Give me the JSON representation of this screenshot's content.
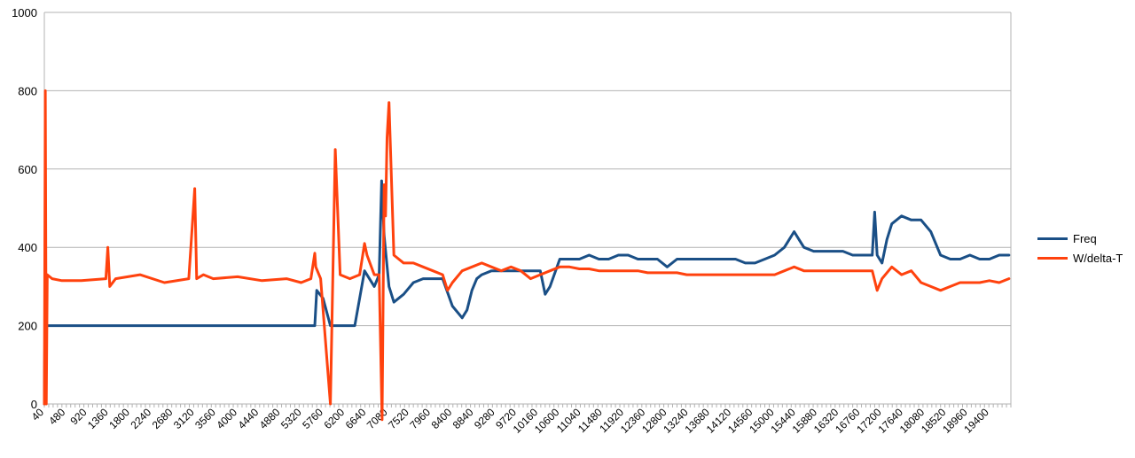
{
  "chart_data": {
    "type": "line",
    "title": "",
    "xlabel": "",
    "ylabel": "",
    "ylim": [
      0,
      1000
    ],
    "y_ticks": [
      0,
      200,
      400,
      600,
      800,
      1000
    ],
    "xlim": [
      40,
      19840
    ],
    "x_tick_labels": [
      "40",
      "480",
      "920",
      "1360",
      "1800",
      "2240",
      "2680",
      "3120",
      "3560",
      "4000",
      "4440",
      "4880",
      "5320",
      "5760",
      "6200",
      "6640",
      "7080",
      "7520",
      "7960",
      "8400",
      "8840",
      "9280",
      "9720",
      "10160",
      "10600",
      "11040",
      "11480",
      "11920",
      "12360",
      "12800",
      "13240",
      "13680",
      "14120",
      "14560",
      "15000",
      "15440",
      "15880",
      "16320",
      "16760",
      "17200",
      "17640",
      "18080",
      "18520",
      "18960",
      "19400"
    ],
    "grid": "horizontal",
    "legend_position": "right",
    "series": [
      {
        "name": "Freq",
        "color": "#1a4f86",
        "x": [
          40,
          60,
          80,
          500,
          1500,
          2500,
          3500,
          4500,
          5300,
          5580,
          5620,
          5750,
          5900,
          6000,
          6200,
          6400,
          6600,
          6800,
          6900,
          6950,
          7000,
          7100,
          7200,
          7400,
          7600,
          7800,
          8000,
          8200,
          8400,
          8600,
          8700,
          8800,
          8900,
          9000,
          9200,
          9400,
          9600,
          9800,
          10000,
          10200,
          10300,
          10400,
          10600,
          10800,
          11000,
          11200,
          11400,
          11600,
          11800,
          12000,
          12200,
          12400,
          12600,
          12800,
          13000,
          13200,
          13400,
          13600,
          13800,
          14000,
          14200,
          14400,
          14600,
          14800,
          15000,
          15200,
          15400,
          15500,
          15600,
          15800,
          16000,
          16200,
          16400,
          16600,
          16800,
          17000,
          17050,
          17100,
          17200,
          17300,
          17400,
          17600,
          17800,
          18000,
          18200,
          18400,
          18600,
          18800,
          19000,
          19200,
          19400,
          19600,
          19800
        ],
        "values": [
          0,
          320,
          200,
          200,
          200,
          200,
          200,
          200,
          200,
          200,
          290,
          270,
          200,
          200,
          200,
          200,
          340,
          300,
          330,
          570,
          430,
          300,
          260,
          280,
          310,
          320,
          320,
          320,
          250,
          220,
          240,
          290,
          320,
          330,
          340,
          340,
          340,
          340,
          340,
          340,
          280,
          300,
          370,
          370,
          370,
          380,
          370,
          370,
          380,
          380,
          370,
          370,
          370,
          350,
          370,
          370,
          370,
          370,
          370,
          370,
          370,
          360,
          360,
          370,
          380,
          400,
          440,
          420,
          400,
          390,
          390,
          390,
          390,
          380,
          380,
          380,
          490,
          380,
          360,
          420,
          460,
          480,
          470,
          470,
          440,
          380,
          370,
          370,
          380,
          370,
          370,
          380,
          380
        ]
      },
      {
        "name": "W/delta-T",
        "color": "#ff420e",
        "x": [
          40,
          60,
          80,
          100,
          200,
          400,
          800,
          1300,
          1340,
          1380,
          1500,
          2000,
          2500,
          3000,
          3120,
          3160,
          3300,
          3500,
          4000,
          4500,
          5000,
          5300,
          5500,
          5580,
          5600,
          5700,
          5900,
          6000,
          6100,
          6300,
          6500,
          6600,
          6650,
          6800,
          6900,
          6960,
          7000,
          7030,
          7060,
          7100,
          7200,
          7400,
          7600,
          7800,
          8000,
          8200,
          8300,
          8400,
          8600,
          8800,
          9000,
          9200,
          9400,
          9600,
          9800,
          10000,
          10200,
          10400,
          10600,
          10800,
          11000,
          11200,
          11400,
          11600,
          11800,
          12000,
          12200,
          12400,
          12600,
          12800,
          13000,
          13200,
          13400,
          13600,
          13800,
          14000,
          14200,
          14400,
          14600,
          14800,
          15000,
          15200,
          15400,
          15600,
          15800,
          16000,
          16200,
          16400,
          16600,
          16800,
          17000,
          17100,
          17200,
          17400,
          17600,
          17800,
          18000,
          18200,
          18400,
          18600,
          18800,
          19000,
          19200,
          19400,
          19600,
          19800
        ],
        "values": [
          0,
          800,
          0,
          330,
          320,
          315,
          315,
          320,
          400,
          300,
          320,
          330,
          310,
          320,
          550,
          320,
          330,
          320,
          325,
          315,
          320,
          310,
          320,
          385,
          350,
          320,
          0,
          650,
          330,
          320,
          330,
          410,
          380,
          330,
          330,
          -40,
          560,
          480,
          680,
          770,
          380,
          360,
          360,
          350,
          340,
          330,
          290,
          310,
          340,
          350,
          360,
          350,
          340,
          350,
          340,
          320,
          330,
          340,
          350,
          350,
          345,
          345,
          340,
          340,
          340,
          340,
          340,
          335,
          335,
          335,
          335,
          330,
          330,
          330,
          330,
          330,
          330,
          330,
          330,
          330,
          330,
          340,
          350,
          340,
          340,
          340,
          340,
          340,
          340,
          340,
          340,
          290,
          320,
          350,
          330,
          340,
          310,
          300,
          290,
          300,
          310,
          310,
          310,
          315,
          310,
          320
        ]
      }
    ]
  }
}
